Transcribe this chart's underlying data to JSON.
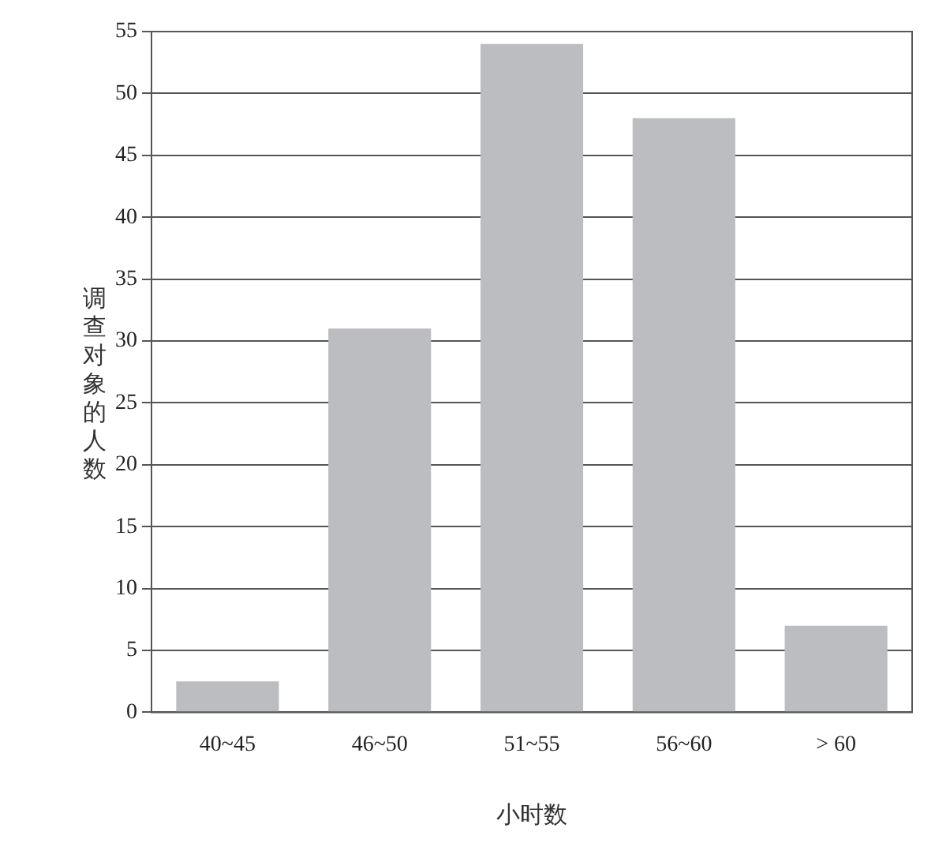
{
  "chart_data": {
    "type": "bar",
    "xlabel": "小时数",
    "ylabel": "调查对象的人数",
    "categories": [
      "40~45",
      "46~50",
      "51~55",
      "56~60",
      "> 60"
    ],
    "values": [
      2.5,
      31,
      54,
      48,
      7
    ],
    "color": "#bcbdc0",
    "ylim": [
      0,
      55
    ],
    "yticks": [
      0,
      5,
      10,
      15,
      20,
      25,
      30,
      35,
      40,
      45,
      50,
      55
    ],
    "grid": "y",
    "legend": false
  }
}
